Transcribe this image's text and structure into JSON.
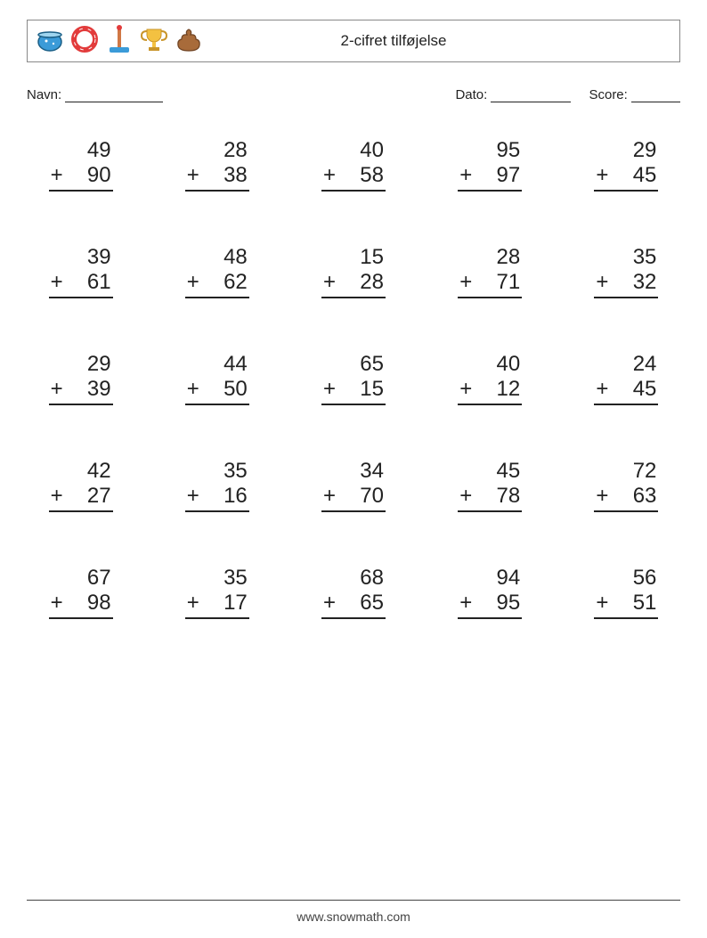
{
  "header": {
    "title": "2-cifret tilføjelse",
    "icons": [
      "fish-bowl-icon",
      "ring-icon",
      "stand-icon",
      "trophy-icon",
      "poop-icon"
    ]
  },
  "meta": {
    "name_label": "Navn:",
    "date_label": "Dato:",
    "score_label": "Score:",
    "name_blank_width": 110,
    "date_blank_width": 90,
    "score_blank_width": 55
  },
  "worksheet": {
    "type": "addition-worksheet",
    "operator_symbol": "+",
    "columns": 5,
    "rows": 5,
    "font_size": 24,
    "text_color": "#222222",
    "background_color": "#ffffff",
    "rule_color": "#222222",
    "problems": [
      {
        "a": 49,
        "b": 90
      },
      {
        "a": 28,
        "b": 38
      },
      {
        "a": 40,
        "b": 58
      },
      {
        "a": 95,
        "b": 97
      },
      {
        "a": 29,
        "b": 45
      },
      {
        "a": 39,
        "b": 61
      },
      {
        "a": 48,
        "b": 62
      },
      {
        "a": 15,
        "b": 28
      },
      {
        "a": 28,
        "b": 71
      },
      {
        "a": 35,
        "b": 32
      },
      {
        "a": 29,
        "b": 39
      },
      {
        "a": 44,
        "b": 50
      },
      {
        "a": 65,
        "b": 15
      },
      {
        "a": 40,
        "b": 12
      },
      {
        "a": 24,
        "b": 45
      },
      {
        "a": 42,
        "b": 27
      },
      {
        "a": 35,
        "b": 16
      },
      {
        "a": 34,
        "b": 70
      },
      {
        "a": 45,
        "b": 78
      },
      {
        "a": 72,
        "b": 63
      },
      {
        "a": 67,
        "b": 98
      },
      {
        "a": 35,
        "b": 17
      },
      {
        "a": 68,
        "b": 65
      },
      {
        "a": 94,
        "b": 95
      },
      {
        "a": 56,
        "b": 51
      }
    ]
  },
  "footer": {
    "url": "www.snowmath.com"
  },
  "icon_svgs": {
    "fish-bowl-icon": "bowl",
    "ring-icon": "ring",
    "stand-icon": "stand",
    "trophy-icon": "trophy",
    "poop-icon": "poop"
  },
  "colors": {
    "bowl_water": "#3b9bd8",
    "bowl_glass": "#9fd5ef",
    "ring": "#e23b3b",
    "stand_pole": "#d07845",
    "stand_base": "#3b9bd8",
    "trophy": "#f3c141",
    "poop": "#a86b3a",
    "border": "#888888"
  }
}
